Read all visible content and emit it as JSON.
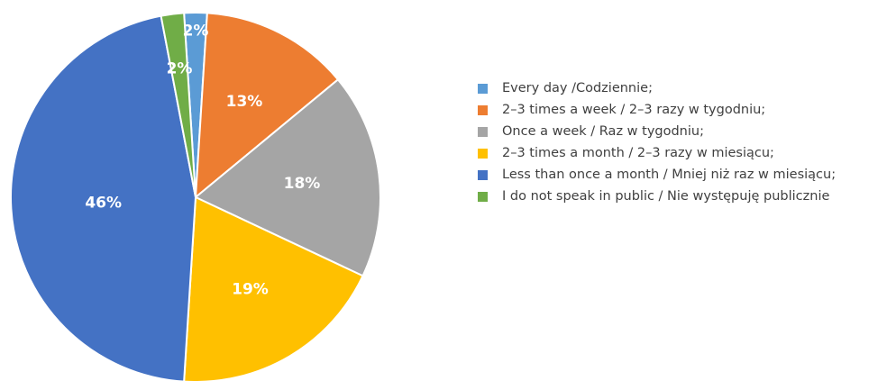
{
  "chart_data": {
    "type": "pie",
    "title": "",
    "legend_position": "right",
    "slices": [
      {
        "label": "Every day /Codziennie;",
        "value": 2,
        "display": "2%",
        "color": "#5B9BD5"
      },
      {
        "label": "2–3 times a week / 2–3 razy w tygodniu;",
        "value": 13,
        "display": "13%",
        "color": "#ED7D31"
      },
      {
        "label": "Once a week / Raz w tygodniu;",
        "value": 18,
        "display": "18%",
        "color": "#A5A5A5"
      },
      {
        "label": "2–3 times a month / 2–3 razy w miesiącu;",
        "value": 19,
        "display": "19%",
        "color": "#FFC000"
      },
      {
        "label": "Less than once a month / Mniej niż raz w miesiącu;",
        "value": 46,
        "display": "46%",
        "color": "#4472C4"
      },
      {
        "label": "I do not speak in public / Nie występuję publicznie",
        "value": 2,
        "display": "2%",
        "color": "#70AD47"
      }
    ]
  }
}
